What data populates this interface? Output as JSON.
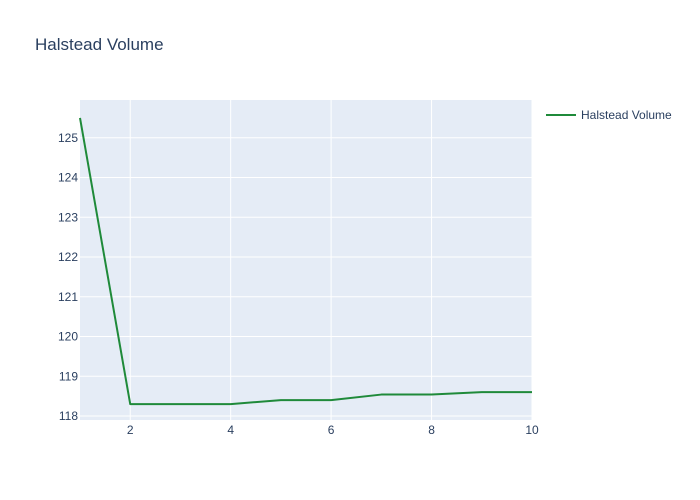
{
  "chart_data": {
    "type": "line",
    "title": "Halstead Volume",
    "xlabel": "",
    "ylabel": "",
    "x": [
      1,
      2,
      3,
      4,
      5,
      6,
      7,
      8,
      9,
      10
    ],
    "series": [
      {
        "name": "Halstead Volume",
        "color": "#1f8a3a",
        "values": [
          125.5,
          118.3,
          118.3,
          118.3,
          118.4,
          118.4,
          118.54,
          118.54,
          118.6,
          118.6
        ]
      }
    ],
    "xlim": [
      1,
      10
    ],
    "ylim": [
      117.9,
      125.95
    ],
    "xticks": [
      2,
      4,
      6,
      8,
      10
    ],
    "yticks": [
      118,
      119,
      120,
      121,
      122,
      123,
      124,
      125
    ],
    "grid": true,
    "legend_position": "top-right",
    "plot_background": "#e5ecf6",
    "grid_color": "#ffffff",
    "text_color": "#2a3f5f"
  }
}
